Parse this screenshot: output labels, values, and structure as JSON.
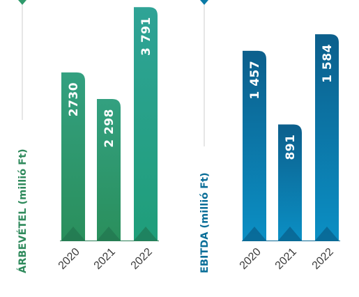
{
  "colors": {
    "revenue": "#2f9a6c",
    "revenue_title": "#2f8a5c",
    "ebitda": "#0a7aa6",
    "ebitda_title": "#0a6e98",
    "axis_line": "#cccccc",
    "tick_text": "#3a3a3a"
  },
  "chart_data": [
    {
      "type": "bar",
      "ylabel": "ÁRBEVÉTEL (millió Ft)",
      "categories": [
        "2020",
        "2021",
        "2022"
      ],
      "series": [
        {
          "values": [
            2730,
            2298,
            3791
          ],
          "labels": [
            "2730",
            "2 298",
            "3 791"
          ]
        }
      ],
      "ylim": [
        0,
        3850
      ],
      "grid": false
    },
    {
      "type": "bar",
      "ylabel": "EBITDA (millió Ft)",
      "categories": [
        "2020",
        "2021",
        "2022"
      ],
      "series": [
        {
          "values": [
            1457,
            891,
            1584
          ],
          "labels": [
            "1 457",
            "891",
            "1 584"
          ]
        }
      ],
      "ylim": [
        0,
        1820
      ],
      "grid": false
    }
  ]
}
